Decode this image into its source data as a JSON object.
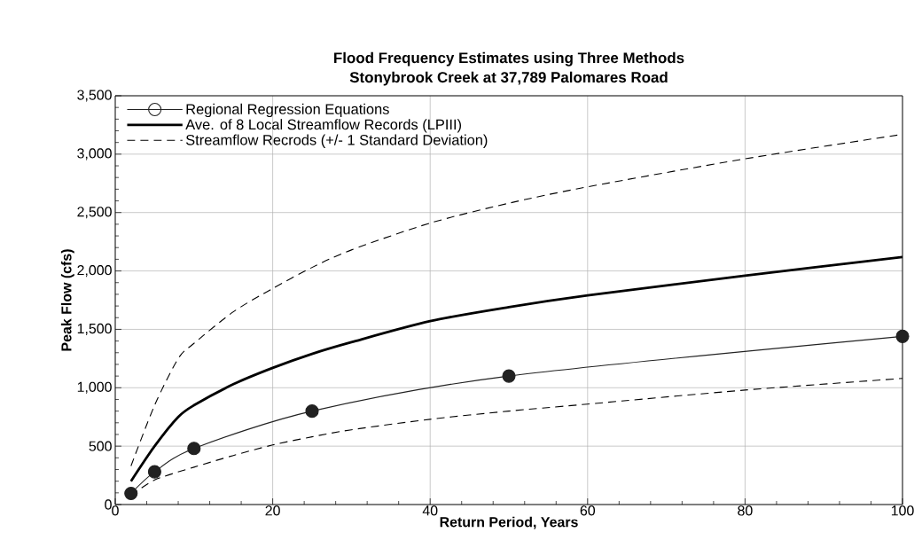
{
  "chart_data": {
    "type": "line",
    "title": "Flood Frequency Estimates using Three Methods",
    "subtitle": "Stonybrook Creek at 37,789 Palomares Road",
    "xlabel": "Return Period, Years",
    "ylabel": "Peak Flow (cfs)",
    "xlim": [
      0,
      100
    ],
    "xticks": [
      0,
      20,
      40,
      60,
      80,
      100
    ],
    "ylim": [
      0,
      3500
    ],
    "yticks": [
      0,
      {
        "value": 500,
        "label": "500"
      },
      {
        "value": 1000,
        "label": "1,000"
      },
      {
        "value": 1500,
        "label": "1,500"
      },
      {
        "value": 2000,
        "label": "2,000"
      },
      {
        "value": 2500,
        "label": "2,500"
      },
      {
        "value": 3000,
        "label": "3,000"
      },
      {
        "value": 3500,
        "label": "3,500"
      }
    ],
    "grid": true,
    "legend": "top left",
    "series": [
      {
        "name": "Regional Regression Equations",
        "color": "#222222",
        "marker": "circle",
        "line_style": "solid",
        "x": [
          2,
          5,
          10,
          25,
          50,
          100
        ],
        "values": [
          95,
          280,
          480,
          800,
          1100,
          1440
        ]
      },
      {
        "name": "Ave. of 8 Local Streamflow Records (LPIII)",
        "color": "#000000",
        "marker": "none",
        "line_style": "solid",
        "x": [
          2,
          5,
          8,
          10,
          15,
          20,
          25,
          30,
          40,
          50,
          60,
          80,
          100
        ],
        "values": [
          200,
          500,
          750,
          850,
          1030,
          1170,
          1290,
          1390,
          1570,
          1690,
          1790,
          1960,
          2120
        ]
      },
      {
        "name": "Streamflow Recrods (+/- 1 Standard Deviation)",
        "color": "#000000",
        "marker": "none",
        "line_style": "dashed",
        "x": [
          2,
          5,
          8,
          10,
          15,
          20,
          25,
          30,
          40,
          50,
          60,
          80,
          100
        ],
        "values": [
          330,
          850,
          1250,
          1380,
          1650,
          1850,
          2030,
          2180,
          2410,
          2580,
          2720,
          2960,
          3170
        ]
      },
      {
        "color": "#000000",
        "marker": "none",
        "line_style": "dashed",
        "x": [
          2,
          5,
          10,
          15,
          20,
          25,
          30,
          40,
          50,
          60,
          80,
          100
        ],
        "values": [
          75,
          210,
          320,
          420,
          510,
          580,
          640,
          730,
          800,
          860,
          980,
          1080
        ]
      }
    ]
  }
}
